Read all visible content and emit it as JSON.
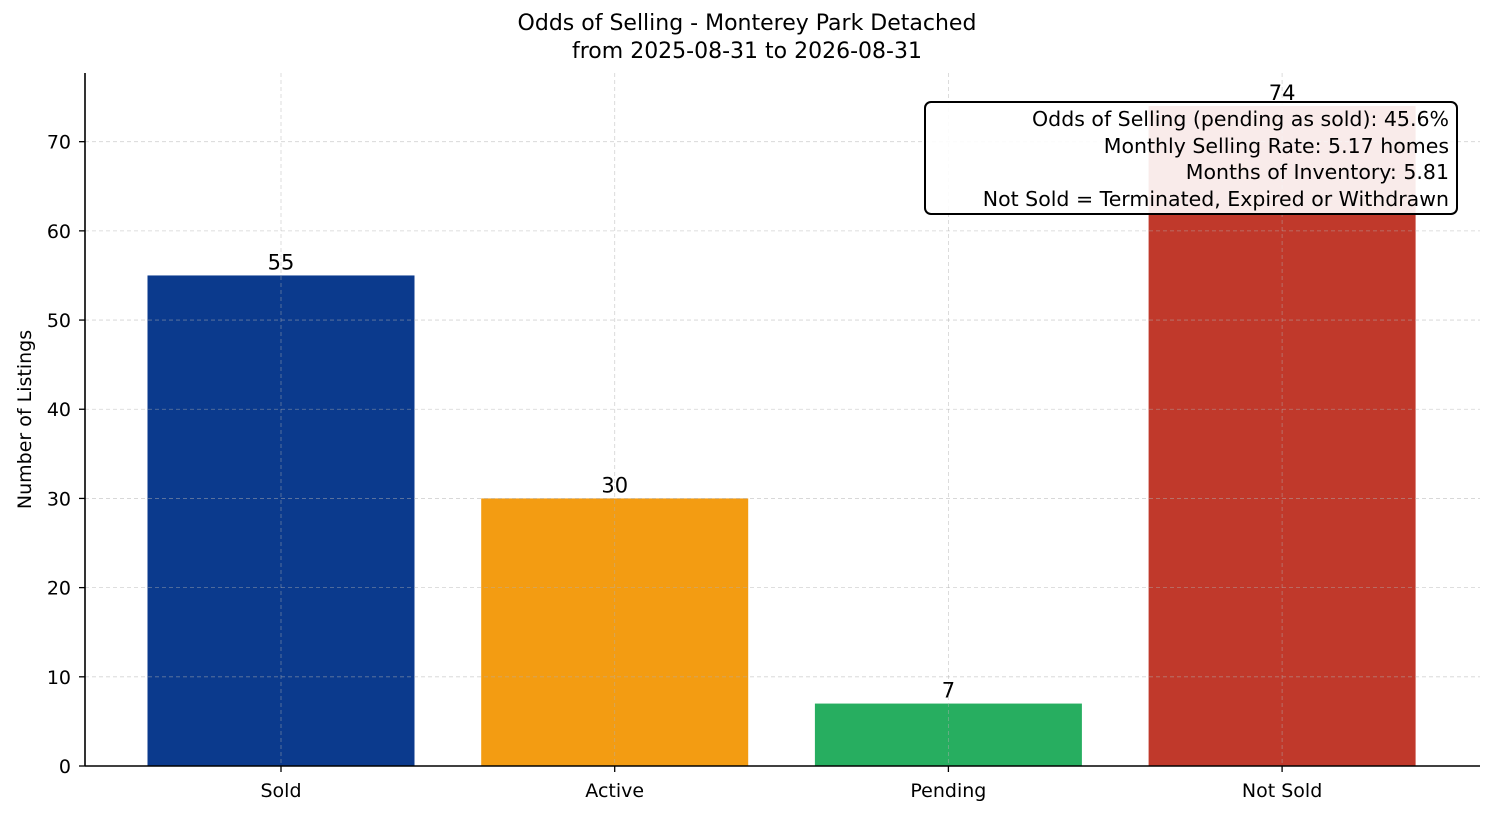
{
  "chart_data": {
    "type": "bar",
    "title": "Odds of Selling - Monterey Park Detached",
    "subtitle": "from 2025-08-31 to 2026-08-31",
    "xlabel": "",
    "ylabel": "Number of Listings",
    "categories": [
      "Sold",
      "Active",
      "Pending",
      "Not Sold"
    ],
    "values": [
      55,
      30,
      7,
      74
    ],
    "data_labels": [
      "55",
      "30",
      "7",
      "74"
    ],
    "colors": [
      "#0b3a8d",
      "#f39c12",
      "#27ae60",
      "#c0392b"
    ],
    "ylim": [
      0,
      77.7
    ],
    "yticks": [
      0,
      10,
      20,
      30,
      40,
      50,
      60,
      70
    ],
    "grid": true,
    "annotation": [
      "Odds of Selling (pending as sold): 45.6%",
      "Monthly Selling Rate: 5.17 homes",
      "Months of Inventory: 5.81",
      "Not Sold = Terminated, Expired or Withdrawn"
    ],
    "annotation_position": "top-right"
  }
}
